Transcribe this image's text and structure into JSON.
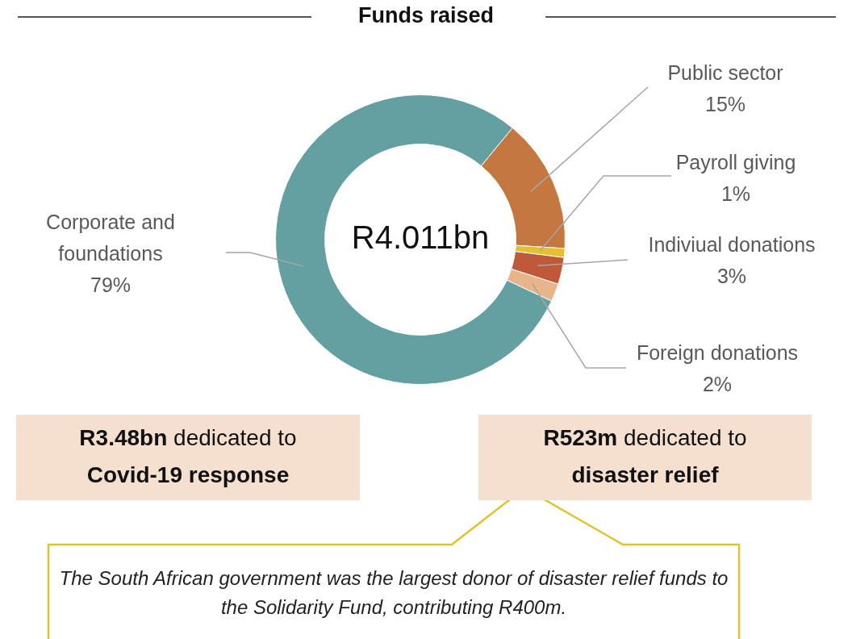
{
  "chart_data": {
    "type": "donut",
    "title": "Funds raised",
    "categories": [
      "Public sector",
      "Payroll giving",
      "Indiviual donations",
      "Foreign donations",
      "Corporate and foundations"
    ],
    "values": [
      15,
      1,
      3,
      2,
      79
    ],
    "colors": [
      "#c4773f",
      "#e2c12f",
      "#c0583a",
      "#e8b48a",
      "#64a0a2"
    ],
    "value_labels": [
      "15%",
      "1%",
      "3%",
      "2%",
      "79%"
    ],
    "legend": false,
    "annotations": [
      "R4.011bn",
      "R3.48bn dedicated to Covid-19 response",
      "R523m dedicated to disaster relief",
      "The South African government was the largest donor of disaster relief funds to the Solidarity Fund, contributing R400m."
    ]
  }
}
